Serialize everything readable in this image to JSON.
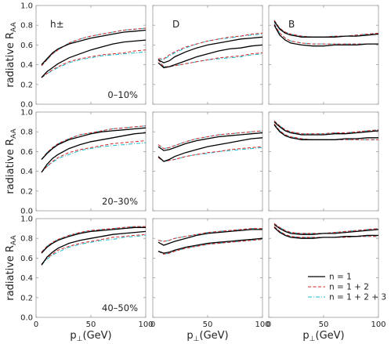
{
  "chart_data": {
    "type": "line",
    "ylabel_main": "radiative R",
    "ylabel_sub": "AA",
    "xlabel_main": "p",
    "xlabel_sub": "⊥",
    "xlabel_unit": "(GeV)",
    "xlim": [
      0,
      100
    ],
    "ylim": [
      0.0,
      1.0
    ],
    "x_ticks": [
      0,
      50,
      100
    ],
    "y_ticks": [
      0.0,
      0.2,
      0.4,
      0.6,
      0.8,
      1.0
    ],
    "y_tick_labels": [
      "0.0",
      "0.2",
      "0.4",
      "0.6",
      "0.8",
      "1.0"
    ],
    "particles": [
      "h±",
      "D",
      "B"
    ],
    "centralities": [
      "0–10%",
      "20–30%",
      "40–50%"
    ],
    "legend": {
      "position": "bottom-right",
      "entries": [
        {
          "label": "n = 1",
          "color": "#000000",
          "dash": "solid"
        },
        {
          "label": "n = 1 + 2",
          "color": "#d62728",
          "dash": "dashed"
        },
        {
          "label": "n = 1 + 2 + 3",
          "color": "#17becf",
          "dash": "dashdot"
        }
      ]
    },
    "x": [
      5,
      10,
      15,
      20,
      30,
      40,
      50,
      60,
      70,
      80,
      90,
      100
    ],
    "panels": [
      {
        "row": 0,
        "col": 0,
        "upper": {
          "n1": [
            0.4,
            0.46,
            0.52,
            0.56,
            0.61,
            0.64,
            0.67,
            0.69,
            0.71,
            0.73,
            0.74,
            0.75
          ],
          "n12": [
            0.39,
            0.45,
            0.51,
            0.55,
            0.62,
            0.66,
            0.69,
            0.71,
            0.73,
            0.75,
            0.76,
            0.77
          ],
          "n123": [
            0.39,
            0.45,
            0.51,
            0.55,
            0.62,
            0.66,
            0.69,
            0.71,
            0.73,
            0.75,
            0.76,
            0.77
          ]
        },
        "lower": {
          "n1": [
            0.27,
            0.33,
            0.37,
            0.41,
            0.47,
            0.51,
            0.55,
            0.58,
            0.61,
            0.63,
            0.64,
            0.65
          ],
          "n12": [
            0.27,
            0.31,
            0.35,
            0.38,
            0.43,
            0.46,
            0.48,
            0.5,
            0.51,
            0.52,
            0.54,
            0.55
          ],
          "n123": [
            0.27,
            0.31,
            0.34,
            0.37,
            0.42,
            0.45,
            0.47,
            0.49,
            0.5,
            0.51,
            0.52,
            0.53
          ]
        }
      },
      {
        "row": 0,
        "col": 1,
        "upper": {
          "n1": [
            0.45,
            0.42,
            0.44,
            0.48,
            0.53,
            0.57,
            0.6,
            0.62,
            0.64,
            0.66,
            0.67,
            0.68
          ],
          "n12": [
            0.46,
            0.46,
            0.5,
            0.53,
            0.58,
            0.61,
            0.64,
            0.66,
            0.68,
            0.69,
            0.71,
            0.72
          ],
          "n123": [
            0.46,
            0.45,
            0.49,
            0.52,
            0.57,
            0.61,
            0.64,
            0.66,
            0.67,
            0.69,
            0.7,
            0.71
          ]
        },
        "lower": {
          "n1": [
            0.42,
            0.37,
            0.38,
            0.4,
            0.44,
            0.48,
            0.51,
            0.54,
            0.56,
            0.57,
            0.59,
            0.6
          ],
          "n12": [
            0.45,
            0.38,
            0.38,
            0.39,
            0.41,
            0.43,
            0.45,
            0.47,
            0.48,
            0.49,
            0.51,
            0.52
          ],
          "n123": [
            0.46,
            0.38,
            0.38,
            0.39,
            0.41,
            0.43,
            0.45,
            0.46,
            0.47,
            0.48,
            0.5,
            0.51
          ]
        }
      },
      {
        "row": 0,
        "col": 2,
        "upper": {
          "n1": [
            0.84,
            0.76,
            0.72,
            0.7,
            0.68,
            0.68,
            0.68,
            0.68,
            0.69,
            0.69,
            0.7,
            0.71
          ],
          "n12": [
            0.85,
            0.77,
            0.73,
            0.71,
            0.69,
            0.68,
            0.68,
            0.69,
            0.69,
            0.7,
            0.71,
            0.72
          ],
          "n123": [
            0.85,
            0.77,
            0.73,
            0.71,
            0.69,
            0.68,
            0.68,
            0.69,
            0.69,
            0.7,
            0.71,
            0.72
          ]
        },
        "lower": {
          "n1": [
            0.8,
            0.7,
            0.65,
            0.62,
            0.6,
            0.59,
            0.59,
            0.6,
            0.6,
            0.6,
            0.61,
            0.61
          ],
          "n12": [
            0.81,
            0.72,
            0.67,
            0.64,
            0.62,
            0.61,
            0.61,
            0.61,
            0.61,
            0.61,
            0.61,
            0.61
          ],
          "n123": [
            0.82,
            0.72,
            0.67,
            0.64,
            0.62,
            0.61,
            0.61,
            0.61,
            0.61,
            0.61,
            0.61,
            0.61
          ]
        }
      },
      {
        "row": 1,
        "col": 0,
        "upper": {
          "n1": [
            0.52,
            0.58,
            0.63,
            0.67,
            0.72,
            0.75,
            0.78,
            0.8,
            0.81,
            0.82,
            0.83,
            0.84
          ],
          "n12": [
            0.52,
            0.59,
            0.64,
            0.68,
            0.73,
            0.77,
            0.79,
            0.81,
            0.83,
            0.84,
            0.85,
            0.86
          ],
          "n123": [
            0.52,
            0.59,
            0.64,
            0.68,
            0.73,
            0.77,
            0.79,
            0.81,
            0.83,
            0.84,
            0.85,
            0.86
          ]
        },
        "lower": {
          "n1": [
            0.39,
            0.47,
            0.53,
            0.57,
            0.63,
            0.67,
            0.7,
            0.72,
            0.74,
            0.76,
            0.78,
            0.79
          ],
          "n12": [
            0.39,
            0.45,
            0.5,
            0.54,
            0.59,
            0.62,
            0.64,
            0.66,
            0.68,
            0.69,
            0.7,
            0.71
          ],
          "n123": [
            0.39,
            0.45,
            0.49,
            0.53,
            0.57,
            0.61,
            0.63,
            0.65,
            0.66,
            0.67,
            0.68,
            0.69
          ]
        }
      },
      {
        "row": 1,
        "col": 1,
        "upper": {
          "n1": [
            0.65,
            0.61,
            0.62,
            0.64,
            0.68,
            0.71,
            0.73,
            0.75,
            0.76,
            0.77,
            0.78,
            0.79
          ],
          "n12": [
            0.67,
            0.63,
            0.64,
            0.66,
            0.7,
            0.73,
            0.75,
            0.77,
            0.78,
            0.79,
            0.8,
            0.81
          ],
          "n123": [
            0.67,
            0.63,
            0.64,
            0.66,
            0.7,
            0.73,
            0.75,
            0.77,
            0.78,
            0.79,
            0.8,
            0.81
          ]
        },
        "lower": {
          "n1": [
            0.55,
            0.5,
            0.52,
            0.55,
            0.59,
            0.62,
            0.65,
            0.67,
            0.69,
            0.71,
            0.73,
            0.74
          ],
          "n12": [
            0.54,
            0.5,
            0.51,
            0.52,
            0.55,
            0.57,
            0.59,
            0.6,
            0.62,
            0.63,
            0.64,
            0.65
          ],
          "n123": [
            0.54,
            0.5,
            0.51,
            0.52,
            0.55,
            0.57,
            0.58,
            0.6,
            0.61,
            0.62,
            0.63,
            0.64
          ]
        }
      },
      {
        "row": 1,
        "col": 2,
        "upper": {
          "n1": [
            0.9,
            0.85,
            0.81,
            0.79,
            0.77,
            0.77,
            0.77,
            0.78,
            0.78,
            0.79,
            0.8,
            0.81
          ],
          "n12": [
            0.91,
            0.86,
            0.82,
            0.8,
            0.78,
            0.78,
            0.78,
            0.79,
            0.79,
            0.8,
            0.81,
            0.82
          ],
          "n123": [
            0.91,
            0.86,
            0.82,
            0.8,
            0.78,
            0.78,
            0.78,
            0.79,
            0.79,
            0.8,
            0.81,
            0.82
          ]
        },
        "lower": {
          "n1": [
            0.87,
            0.8,
            0.76,
            0.74,
            0.72,
            0.72,
            0.72,
            0.72,
            0.73,
            0.73,
            0.74,
            0.74
          ],
          "n12": [
            0.88,
            0.81,
            0.77,
            0.75,
            0.73,
            0.72,
            0.72,
            0.72,
            0.72,
            0.72,
            0.72,
            0.72
          ],
          "n123": [
            0.88,
            0.81,
            0.77,
            0.75,
            0.73,
            0.72,
            0.72,
            0.72,
            0.72,
            0.72,
            0.72,
            0.72
          ]
        }
      },
      {
        "row": 2,
        "col": 0,
        "upper": {
          "n1": [
            0.65,
            0.71,
            0.75,
            0.78,
            0.82,
            0.85,
            0.87,
            0.88,
            0.89,
            0.9,
            0.91,
            0.91
          ],
          "n12": [
            0.66,
            0.72,
            0.76,
            0.79,
            0.83,
            0.86,
            0.88,
            0.89,
            0.9,
            0.91,
            0.92,
            0.92
          ],
          "n123": [
            0.66,
            0.72,
            0.76,
            0.79,
            0.83,
            0.86,
            0.88,
            0.89,
            0.9,
            0.91,
            0.92,
            0.92
          ]
        },
        "lower": {
          "n1": [
            0.53,
            0.61,
            0.66,
            0.7,
            0.75,
            0.78,
            0.8,
            0.82,
            0.84,
            0.85,
            0.86,
            0.87
          ],
          "n12": [
            0.54,
            0.6,
            0.64,
            0.68,
            0.72,
            0.75,
            0.77,
            0.79,
            0.81,
            0.82,
            0.83,
            0.84
          ],
          "n123": [
            0.53,
            0.59,
            0.63,
            0.66,
            0.71,
            0.74,
            0.76,
            0.78,
            0.79,
            0.81,
            0.82,
            0.83
          ]
        }
      },
      {
        "row": 2,
        "col": 1,
        "upper": {
          "n1": [
            0.76,
            0.73,
            0.75,
            0.77,
            0.8,
            0.83,
            0.85,
            0.86,
            0.87,
            0.88,
            0.89,
            0.89
          ],
          "n12": [
            0.78,
            0.77,
            0.78,
            0.8,
            0.82,
            0.84,
            0.86,
            0.87,
            0.88,
            0.89,
            0.9,
            0.9
          ],
          "n123": [
            0.78,
            0.77,
            0.78,
            0.8,
            0.82,
            0.84,
            0.86,
            0.87,
            0.88,
            0.89,
            0.9,
            0.9
          ]
        },
        "lower": {
          "n1": [
            0.67,
            0.65,
            0.66,
            0.68,
            0.71,
            0.73,
            0.75,
            0.76,
            0.77,
            0.78,
            0.79,
            0.8
          ],
          "n12": [
            0.67,
            0.64,
            0.65,
            0.67,
            0.7,
            0.72,
            0.74,
            0.75,
            0.76,
            0.77,
            0.78,
            0.79
          ],
          "n123": [
            0.67,
            0.64,
            0.65,
            0.67,
            0.7,
            0.72,
            0.74,
            0.75,
            0.76,
            0.77,
            0.78,
            0.79
          ]
        }
      },
      {
        "row": 2,
        "col": 2,
        "upper": {
          "n1": [
            0.94,
            0.9,
            0.87,
            0.85,
            0.84,
            0.84,
            0.85,
            0.85,
            0.86,
            0.87,
            0.88,
            0.89
          ],
          "n12": [
            0.95,
            0.91,
            0.88,
            0.86,
            0.85,
            0.85,
            0.85,
            0.86,
            0.87,
            0.88,
            0.89,
            0.9
          ],
          "n123": [
            0.95,
            0.91,
            0.88,
            0.86,
            0.85,
            0.85,
            0.85,
            0.86,
            0.87,
            0.88,
            0.89,
            0.9
          ]
        },
        "lower": {
          "n1": [
            0.91,
            0.86,
            0.83,
            0.81,
            0.8,
            0.8,
            0.81,
            0.81,
            0.82,
            0.82,
            0.83,
            0.83
          ],
          "n12": [
            0.92,
            0.87,
            0.84,
            0.82,
            0.81,
            0.81,
            0.81,
            0.81,
            0.81,
            0.82,
            0.82,
            0.82
          ],
          "n123": [
            0.92,
            0.87,
            0.84,
            0.82,
            0.81,
            0.81,
            0.81,
            0.81,
            0.81,
            0.82,
            0.82,
            0.82
          ]
        }
      }
    ]
  }
}
